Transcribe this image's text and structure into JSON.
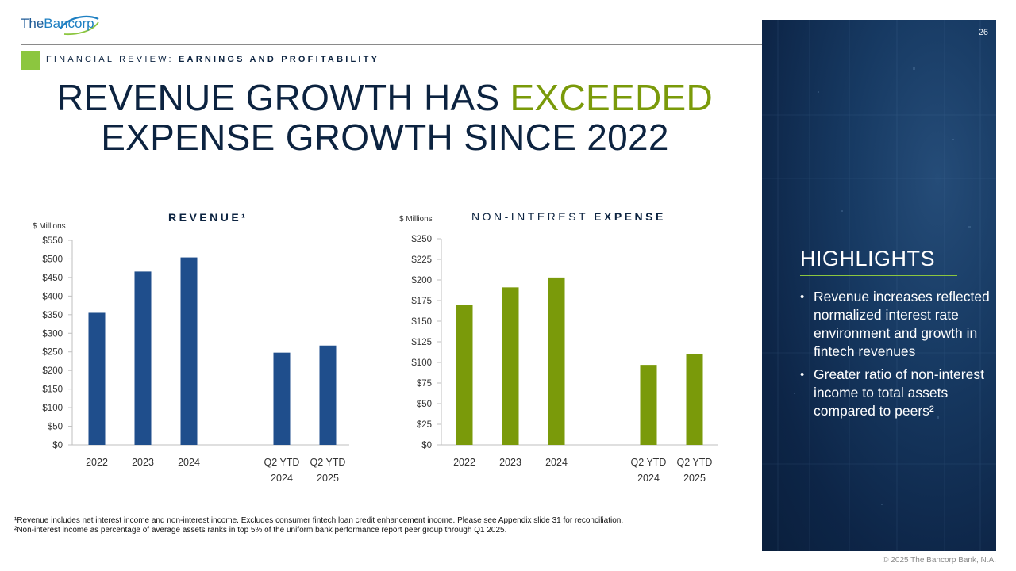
{
  "header": {
    "logo_text_the": "The",
    "logo_text_bancorp": "Bancorp",
    "section_prefix": "FINANCIAL REVIEW: ",
    "section_bold": "EARNINGS AND PROFITABILITY",
    "title_part1": "REVENUE GROWTH HAS ",
    "title_accent": "EXCEEDED",
    "title_part2": "EXPENSE GROWTH SINCE 2022",
    "page_number": "26"
  },
  "colors": {
    "navy": "#0c2340",
    "revenue_bar": "#1f4e8c",
    "expense_bar": "#7a9a0a",
    "accent_green": "#8cc63f"
  },
  "chart_data": [
    {
      "type": "bar",
      "title": "REVENUE¹",
      "ylabel": "$ Millions",
      "categories": [
        "2022",
        "2023",
        "2024",
        "Q2 YTD 2024",
        "Q2 YTD 2025"
      ],
      "values": [
        355,
        466,
        504,
        248,
        267
      ],
      "ylim": [
        0,
        550
      ],
      "yticks": [
        "$0",
        "$50",
        "$100",
        "$150",
        "$200",
        "$250",
        "$300",
        "$350",
        "$400",
        "$450",
        "$500",
        "$550"
      ],
      "grid": false
    },
    {
      "type": "bar",
      "title": "NON-INTEREST EXPENSE",
      "title_regular": "NON-INTEREST ",
      "title_bold": "EXPENSE",
      "ylabel": "$ Millions",
      "categories": [
        "2022",
        "2023",
        "2024",
        "Q2 YTD 2024",
        "Q2 YTD 2025"
      ],
      "values": [
        170,
        191,
        203,
        97,
        110
      ],
      "ylim": [
        0,
        250
      ],
      "yticks": [
        "$0",
        "$25",
        "$50",
        "$75",
        "$100",
        "$125",
        "$150",
        "$175",
        "$200",
        "$225",
        "$250"
      ],
      "grid": false
    }
  ],
  "highlights": {
    "title": "HIGHLIGHTS",
    "items": [
      "Revenue increases reflected normalized interest rate environment and growth in fintech revenues",
      "Greater ratio of non-interest income to total assets compared to peers²"
    ]
  },
  "footnotes": [
    "¹Revenue includes net interest income and non-interest income. Excludes consumer fintech loan credit enhancement income. Please see Appendix slide 31 for reconciliation.",
    "²Non-interest income as percentage of average assets ranks in top 5% of the uniform bank performance report peer group through Q1 2025."
  ],
  "copyright": "© 2025 The Bancorp Bank, N.A."
}
